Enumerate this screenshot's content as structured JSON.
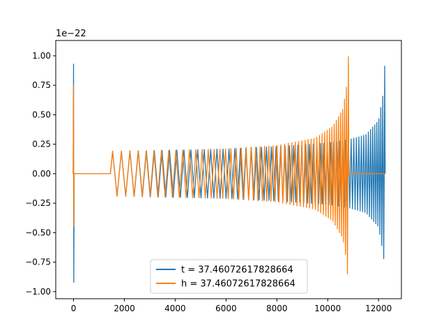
{
  "chart_data": {
    "type": "line",
    "title": "",
    "xlabel": "",
    "ylabel": "",
    "y_offset_label": "1e−22",
    "xlim": [
      -700,
      12900
    ],
    "ylim": [
      -1.06,
      1.13
    ],
    "x_ticks": [
      0,
      2000,
      4000,
      6000,
      8000,
      10000,
      12000
    ],
    "x_tick_labels": [
      "0",
      "2000",
      "4000",
      "6000",
      "8000",
      "10000",
      "12000"
    ],
    "y_ticks": [
      1.0,
      0.75,
      0.5,
      0.25,
      0.0,
      -0.25,
      -0.5,
      -0.75,
      -1.0
    ],
    "y_tick_labels": [
      "1.00",
      "0.75",
      "0.50",
      "0.25",
      "0.00",
      "−0.25",
      "−0.50",
      "−0.75",
      "−1.00"
    ],
    "grid": false,
    "legend_position": "bottom-center",
    "series": [
      {
        "name": "t = 37.46072617828664",
        "color": "#1f77b4",
        "description_points": {
          "initial_spike": {
            "x": 0,
            "max": 0.93,
            "min": -0.92
          },
          "flat_segment": {
            "x_start": 80,
            "x_end": 1450,
            "value": 0.0
          },
          "oscillation_start": {
            "x": 1450,
            "amplitude": 0.19
          },
          "envelope": [
            [
              1450,
              0.19
            ],
            [
              4000,
              0.2
            ],
            [
              6000,
              0.21
            ],
            [
              8000,
              0.23
            ],
            [
              10000,
              0.26
            ],
            [
              10850,
              0.29
            ],
            [
              11500,
              0.33
            ],
            [
              12000,
              0.45
            ],
            [
              12200,
              0.7
            ],
            [
              12270,
              1.05
            ]
          ],
          "end_x": 12280
        }
      },
      {
        "name": "h = 37.46072617828664",
        "color": "#ff7f0e",
        "description_points": {
          "initial_spike": {
            "x": 0,
            "max": 0.75,
            "min": -0.45
          },
          "flat_segment": {
            "x_start": 80,
            "x_end": 1450,
            "value": 0.0
          },
          "envelope": [
            [
              0,
              0.19
            ],
            [
              2000,
              0.19
            ],
            [
              4000,
              0.2
            ],
            [
              6000,
              0.21
            ],
            [
              8000,
              0.24
            ],
            [
              9500,
              0.3
            ],
            [
              10200,
              0.4
            ],
            [
              10600,
              0.55
            ],
            [
              10750,
              0.75
            ],
            [
              10830,
              1.05
            ]
          ],
          "merger_x": 10830,
          "post_merger_flat": {
            "x_start": 10850,
            "x_end": 12280,
            "value": 0.0
          }
        }
      }
    ]
  }
}
